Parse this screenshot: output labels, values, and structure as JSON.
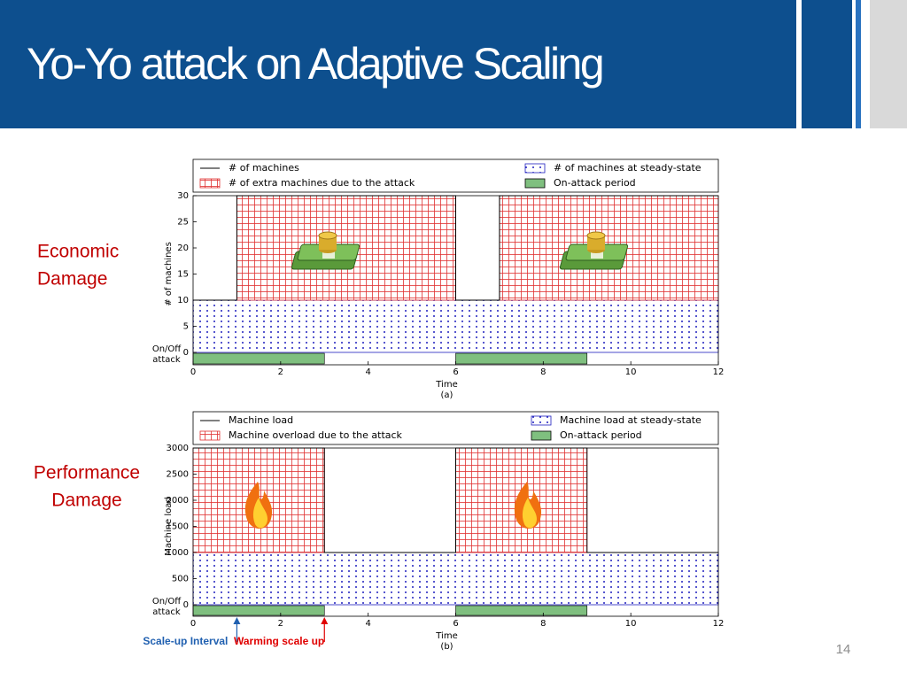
{
  "title": "Yo-Yo attack on Adaptive Scaling",
  "side_labels": [
    [
      "Economic",
      "Damage"
    ],
    [
      "Performance",
      "Damage"
    ]
  ],
  "page_number": "14",
  "chart_data": [
    {
      "type": "step",
      "xlabel": "Time",
      "caption": "(a)",
      "ylabel": "# of machines",
      "onoff_label": [
        "On/Off",
        "attack"
      ],
      "xlim": [
        0,
        12
      ],
      "xticks": [
        0,
        2,
        4,
        6,
        8,
        10,
        12
      ],
      "ylim": [
        0,
        30
      ],
      "yticks": [
        0,
        5,
        10,
        15,
        20,
        25,
        30
      ],
      "series": [
        {
          "name": "# of machines",
          "kind": "line",
          "color": "#000000",
          "x": [
            0,
            1,
            1,
            6,
            6,
            7,
            7,
            12
          ],
          "values": [
            10,
            10,
            30,
            30,
            10,
            10,
            30,
            30
          ]
        },
        {
          "name": "# of machines at steady-state",
          "kind": "dots",
          "color": "#1f1fbf",
          "intervals": [
            [
              0,
              12
            ]
          ],
          "values": [
            10
          ]
        },
        {
          "name": "# of extra machines due to the attack",
          "kind": "grid",
          "color": "#e03030",
          "intervals": [
            [
              1,
              6
            ],
            [
              7,
              12
            ]
          ],
          "values": [
            20,
            20
          ]
        },
        {
          "name": "On-attack period",
          "kind": "period",
          "color": "#7fbf7f",
          "intervals": [
            [
              0,
              3
            ],
            [
              6,
              9
            ]
          ]
        }
      ]
    },
    {
      "type": "step",
      "xlabel": "Time",
      "caption": "(b)",
      "ylabel": "Machine load",
      "onoff_label": [
        "On/Off",
        "attack"
      ],
      "xlim": [
        0,
        12
      ],
      "xticks": [
        0,
        2,
        4,
        6,
        8,
        10,
        12
      ],
      "ylim": [
        0,
        3000
      ],
      "yticks": [
        0,
        500,
        1000,
        1500,
        2000,
        2500,
        3000
      ],
      "series": [
        {
          "name": "Machine load",
          "kind": "line",
          "color": "#000000",
          "x": [
            0,
            3,
            3,
            6,
            6,
            9,
            9,
            12
          ],
          "values": [
            3000,
            3000,
            1000,
            1000,
            3000,
            3000,
            1000,
            1000
          ]
        },
        {
          "name": "Machine load at steady-state",
          "kind": "dots",
          "color": "#1f1fbf",
          "intervals": [
            [
              0,
              12
            ]
          ],
          "values": [
            1000
          ]
        },
        {
          "name": "Machine overload due to the attack",
          "kind": "grid",
          "color": "#e03030",
          "intervals": [
            [
              0,
              3
            ],
            [
              6,
              9
            ]
          ],
          "values": [
            2000,
            2000
          ]
        },
        {
          "name": "On-attack period",
          "kind": "period",
          "color": "#7fbf7f",
          "intervals": [
            [
              0,
              3
            ],
            [
              6,
              9
            ]
          ]
        }
      ],
      "annotations": [
        {
          "text": "Scale-up Interval",
          "x": 1,
          "color": "#2060b0"
        },
        {
          "text": "Warming scale up",
          "x": 3,
          "color": "#e00000"
        }
      ]
    }
  ]
}
